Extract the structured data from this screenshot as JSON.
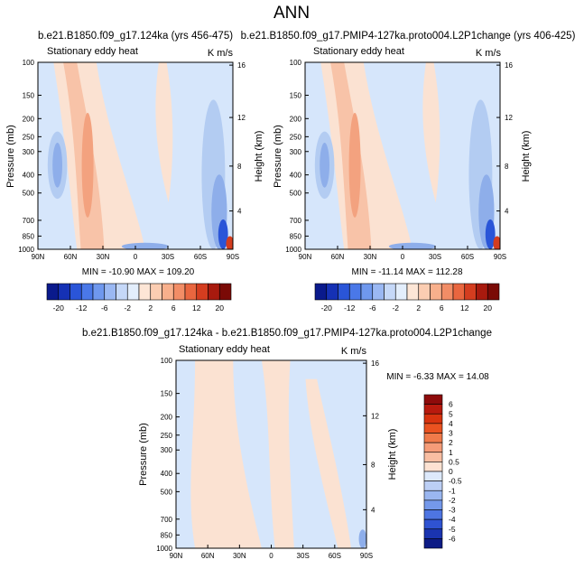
{
  "figure_title": "ANN",
  "chart_data": [
    {
      "type": "heatmap",
      "run_title": "b.e21.B1850.f09_g17.124ka (yrs 456-475)",
      "left_label": "Stationary eddy heat",
      "right_label": "K m/s",
      "ylabel": "Pressure (mb)",
      "ylabel_right": "Height (km)",
      "xticks": [
        "90N",
        "60N",
        "30N",
        "0",
        "30S",
        "60S",
        "90S"
      ],
      "yticks": [
        "100",
        "150",
        "200",
        "250",
        "300",
        "400",
        "500",
        "700",
        "850",
        "1000"
      ],
      "yticks_right": [
        "16",
        "12",
        "8",
        "4"
      ],
      "stats": "MIN = -10.90  MAX = 109.20",
      "min": -10.9,
      "max": 109.2
    },
    {
      "type": "heatmap",
      "run_title": "b.e21.B1850.f09_g17.PMIP4-127ka.proto004.L2P1change (yrs 406-425)",
      "left_label": "Stationary eddy heat",
      "right_label": "K m/s",
      "ylabel": "Pressure (mb)",
      "ylabel_right": "Height (km)",
      "xticks": [
        "90N",
        "60N",
        "30N",
        "0",
        "30S",
        "60S",
        "90S"
      ],
      "yticks": [
        "100",
        "150",
        "200",
        "250",
        "300",
        "400",
        "500",
        "700",
        "850",
        "1000"
      ],
      "yticks_right": [
        "16",
        "12",
        "8",
        "4"
      ],
      "stats": "MIN = -11.14  MAX = 112.28",
      "min": -11.14,
      "max": 112.28
    },
    {
      "type": "heatmap",
      "run_title": "b.e21.B1850.f09_g17.124ka - b.e21.B1850.f09_g17.PMIP4-127ka.proto004.L2P1change",
      "left_label": "Stationary eddy heat",
      "right_label": "K m/s",
      "ylabel": "Pressure (mb)",
      "ylabel_right": "Height (km)",
      "xticks": [
        "90N",
        "60N",
        "30N",
        "0",
        "30S",
        "60S",
        "90S"
      ],
      "yticks": [
        "100",
        "150",
        "200",
        "250",
        "300",
        "400",
        "500",
        "700",
        "850",
        "1000"
      ],
      "yticks_right": [
        "16",
        "12",
        "8",
        "4"
      ],
      "stats": "MIN = -6.33  MAX = 14.08",
      "min": -6.33,
      "max": 14.08
    }
  ],
  "colorbar_main": {
    "labels": [
      "-20",
      "-12",
      "-6",
      "-2",
      "2",
      "6",
      "12",
      "20"
    ],
    "colors": [
      "#0a1a8c",
      "#1531b5",
      "#2a55d8",
      "#4a78e8",
      "#6f98ee",
      "#9ab8f3",
      "#c5d8f8",
      "#e3eefc",
      "#fde6d6",
      "#fbcdb2",
      "#f8b08c",
      "#f28d66",
      "#e9663f",
      "#d43d1f",
      "#a81a0e",
      "#7a0a06"
    ]
  },
  "colorbar_diff": {
    "labels": [
      "6",
      "5",
      "4",
      "3",
      "2",
      "1",
      "0.5",
      "0",
      "-0.5",
      "-1",
      "-2",
      "-3",
      "-4",
      "-5",
      "-6"
    ],
    "colors": [
      "#8e0b0b",
      "#b81a0e",
      "#d8330f",
      "#ea5220",
      "#f07a4a",
      "#f59c78",
      "#f9bea2",
      "#fde2d2",
      "#dde9fb",
      "#bccff5",
      "#9ab6f0",
      "#7498ea",
      "#4e75e2",
      "#2f53d2",
      "#1a34b0",
      "#0d1b85"
    ]
  },
  "colors": {
    "background": "#d6e6fb",
    "warm": "#fbe2d2",
    "warm_mid": "#f8c3a8",
    "warm_strong": "#f3a27f",
    "cool": "#b3ccf2",
    "cool_mid": "#8eaeea",
    "cool_strong": "#2a55d8",
    "red_extreme": "#d43d1f"
  }
}
